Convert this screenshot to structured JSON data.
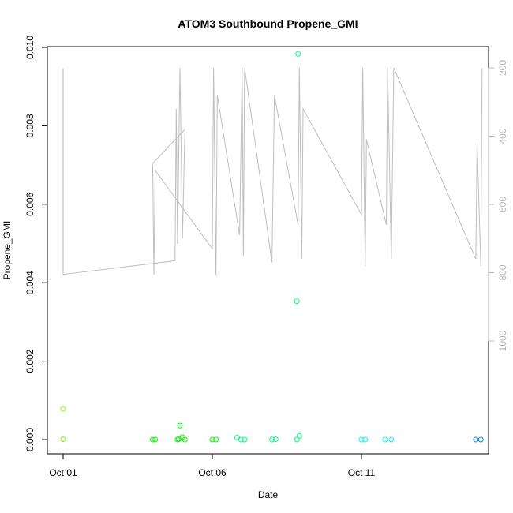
{
  "chart_data": {
    "type": "scatter",
    "title": "ATOM3 Southbound Propene_GMI",
    "xlabel": "Date",
    "ylabel": "Propene_GMI",
    "x_ticks": [
      "Oct 01",
      "Oct 06",
      "Oct 11"
    ],
    "y_ticks": [
      "0.000",
      "0.002",
      "0.004",
      "0.006",
      "0.008",
      "0.010"
    ],
    "y2_ticks": [
      "200",
      "400",
      "600",
      "800",
      "1000"
    ],
    "xlim": [
      "2017-10-01",
      "2017-10-15"
    ],
    "ylim": [
      0,
      0.01
    ],
    "y2lim": [
      1000,
      200
    ],
    "y2_reversed": true,
    "grid": false,
    "point_colors_by_time": [
      "#80ff00",
      "#00ff00",
      "#00ff80",
      "#00ffff",
      "#0080ff"
    ],
    "pressure_line_color": "#bebebe",
    "series": [
      {
        "mark": "point",
        "points": [
          [
            "2017-10-01 00:00",
            0.00078
          ],
          [
            "2017-10-01 00:00",
            1e-05
          ],
          [
            "2017-10-04 00:00",
            0.0
          ],
          [
            "2017-10-04 02:00",
            0.0
          ],
          [
            "2017-10-04 20:00",
            0.0
          ],
          [
            "2017-10-04 21:00",
            1e-05
          ],
          [
            "2017-10-04 22:00",
            0.00036
          ],
          [
            "2017-10-05 00:00",
            6e-05
          ],
          [
            "2017-10-05 02:00",
            0.0
          ],
          [
            "2017-10-06 00:00",
            0.0
          ],
          [
            "2017-10-06 03:00",
            0.0
          ],
          [
            "2017-10-06 20:00",
            5e-05
          ],
          [
            "2017-10-06 23:00",
            0.0
          ],
          [
            "2017-10-07 02:00",
            0.0
          ],
          [
            "2017-10-08 00:00",
            0.0
          ],
          [
            "2017-10-08 03:00",
            1e-05
          ],
          [
            "2017-10-08 20:00",
            0.00353
          ],
          [
            "2017-10-08 21:00",
            0.00983
          ],
          [
            "2017-10-08 22:00",
            9e-05
          ],
          [
            "2017-10-08 20:00",
            0.0
          ],
          [
            "2017-10-11 00:00",
            0.0
          ],
          [
            "2017-10-11 03:00",
            0.0
          ],
          [
            "2017-10-11 19:00",
            0.0
          ],
          [
            "2017-10-12 00:00",
            0.0
          ],
          [
            "2017-10-14 20:00",
            0.0
          ],
          [
            "2017-10-15 00:00",
            0.0
          ]
        ]
      },
      {
        "mark": "line",
        "axis": "right",
        "points": [
          [
            "2017-10-01 00:00",
            200
          ],
          [
            "2017-10-01 00:00",
            805
          ],
          [
            "2017-10-04 18:00",
            765
          ],
          [
            "2017-10-04 19:00",
            320
          ],
          [
            "2017-10-04 20:00",
            715
          ],
          [
            "2017-10-04 22:00",
            200
          ],
          [
            "2017-10-05 00:00",
            700
          ],
          [
            "2017-10-05 02:00",
            380
          ],
          [
            "2017-10-04 00:00",
            480
          ],
          [
            "2017-10-04 01:00",
            805
          ],
          [
            "2017-10-04 02:00",
            500
          ],
          [
            "2017-10-06 00:00",
            730
          ],
          [
            "2017-10-06 01:00",
            200
          ],
          [
            "2017-10-06 03:00",
            810
          ],
          [
            "2017-10-06 04:00",
            280
          ],
          [
            "2017-10-06 22:00",
            690
          ],
          [
            "2017-10-07 00:00",
            200
          ],
          [
            "2017-10-07 01:00",
            750
          ],
          [
            "2017-10-07 02:00",
            200
          ],
          [
            "2017-10-08 00:00",
            770
          ],
          [
            "2017-10-08 02:00",
            280
          ],
          [
            "2017-10-08 21:00",
            660
          ],
          [
            "2017-10-08 22:00",
            200
          ],
          [
            "2017-10-09 00:00",
            760
          ],
          [
            "2017-10-09 01:00",
            320
          ],
          [
            "2017-10-11 00:00",
            630
          ],
          [
            "2017-10-11 01:00",
            200
          ],
          [
            "2017-10-11 03:00",
            780
          ],
          [
            "2017-10-11 04:00",
            410
          ],
          [
            "2017-10-11 20:00",
            660
          ],
          [
            "2017-10-11 21:00",
            200
          ],
          [
            "2017-10-12 00:00",
            760
          ],
          [
            "2017-10-12 02:00",
            200
          ],
          [
            "2017-10-14 20:00",
            760
          ],
          [
            "2017-10-14 21:00",
            420
          ],
          [
            "2017-10-15 00:00",
            780
          ],
          [
            "2017-10-15 01:00",
            200
          ]
        ]
      }
    ]
  }
}
